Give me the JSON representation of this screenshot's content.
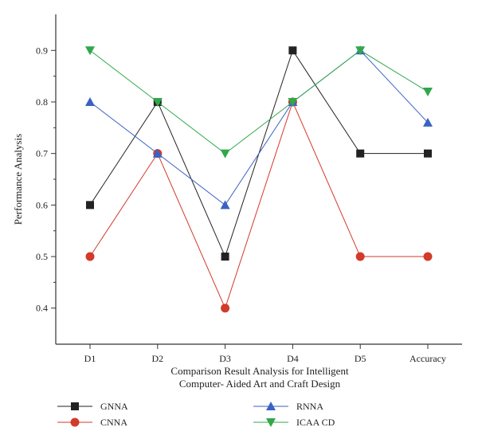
{
  "chart_data": {
    "type": "line",
    "categories": [
      "D1",
      "D2",
      "D3",
      "D4",
      "D5",
      "Accuracy"
    ],
    "xlabel_lines": [
      "Comparison Result Analysis for Intelligent",
      "Computer- Aided Art and Craft Design"
    ],
    "ylabel": "Performance Analysis",
    "ylim": [
      0.33,
      0.97
    ],
    "yticks": [
      0.4,
      0.5,
      0.6,
      0.7,
      0.8,
      0.9
    ],
    "grid": false,
    "legend_placement": "bottom",
    "series": [
      {
        "name": "GNNA",
        "color": "#222222",
        "marker": "square",
        "values": [
          0.6,
          0.8,
          0.5,
          0.9,
          0.7,
          0.7
        ]
      },
      {
        "name": "CNNA",
        "color": "#d23a2a",
        "marker": "circle",
        "values": [
          0.5,
          0.7,
          0.4,
          0.8,
          0.5,
          0.5
        ]
      },
      {
        "name": "RNNA",
        "color": "#3a62c4",
        "marker": "triangle-up",
        "values": [
          0.8,
          0.7,
          0.6,
          0.8,
          0.9,
          0.76
        ]
      },
      {
        "name": "ICAA CD",
        "color": "#2fa84a",
        "marker": "triangle-down",
        "values": [
          0.9,
          0.8,
          0.7,
          0.8,
          0.9,
          0.82
        ]
      }
    ]
  }
}
